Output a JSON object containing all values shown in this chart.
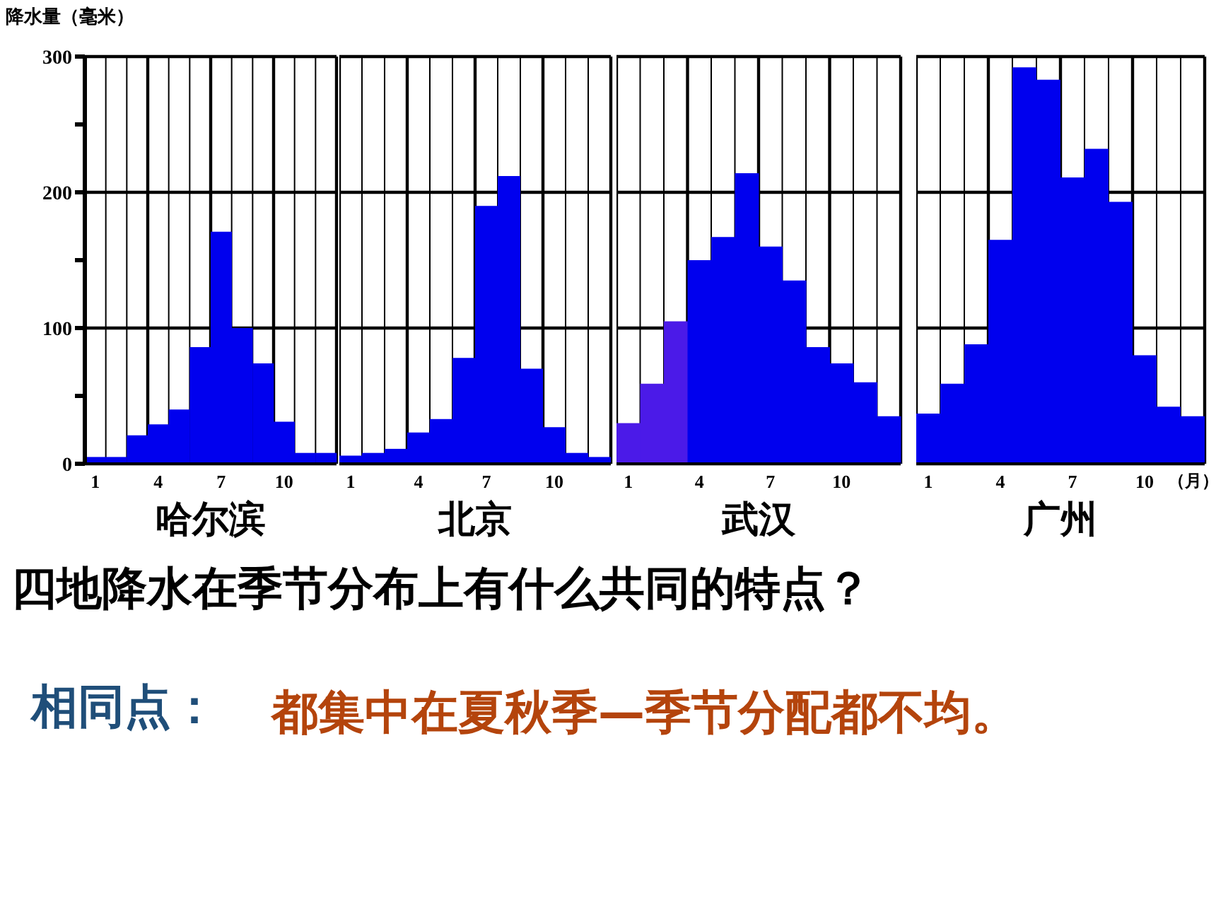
{
  "chart_data": [
    {
      "type": "bar",
      "title": "哈尔滨",
      "ylabel": "降水量（毫米）",
      "categories": [
        "1",
        null,
        null,
        "4",
        null,
        null,
        "7",
        null,
        null,
        "10",
        null,
        null
      ],
      "series": [
        {
          "color": "#0000ee",
          "values": [
            5,
            5,
            21,
            29,
            40,
            86,
            171,
            100,
            74,
            31,
            8,
            8
          ]
        }
      ],
      "ylim": [
        0,
        300
      ],
      "yticks": [
        0,
        {
          "value": 50,
          "label": null
        },
        100,
        {
          "value": 150,
          "label": null
        },
        200,
        {
          "value": 250,
          "label": null
        },
        300
      ],
      "grid": true
    },
    {
      "type": "bar",
      "title": "北京",
      "categories": [
        "1",
        null,
        null,
        "4",
        null,
        null,
        "7",
        null,
        null,
        "10",
        null,
        null
      ],
      "series": [
        {
          "color": "#0000ee",
          "values": [
            6,
            8,
            11,
            23,
            33,
            78,
            190,
            212,
            70,
            27,
            8,
            5
          ]
        }
      ],
      "ylim": [
        0,
        300
      ],
      "yticks": [
        0,
        100,
        200,
        300
      ],
      "grid": true,
      "tick_labels": "x"
    },
    {
      "type": "bar",
      "title": "武汉",
      "categories": [
        "1",
        null,
        null,
        "4",
        null,
        null,
        "7",
        null,
        null,
        "10",
        null,
        null
      ],
      "series": [
        {
          "color": "#0000ee",
          "colors": [
            "#4b1ae8",
            "#4b1ae8",
            "#4b1ae8",
            "#0000ee",
            "#0000ee",
            "#0000ee",
            "#0000ee",
            "#0000ee",
            "#0000ee",
            "#0000ee",
            "#0000ee",
            "#0000ee"
          ],
          "values": [
            30,
            59,
            105,
            150,
            167,
            214,
            160,
            135,
            86,
            74,
            60,
            35
          ]
        }
      ],
      "ylim": [
        0,
        300
      ],
      "yticks": [
        0,
        100,
        200,
        300
      ],
      "grid": true,
      "tick_labels": "x"
    },
    {
      "type": "bar",
      "title": "广州",
      "xlabel": "（月）",
      "categories": [
        "1",
        null,
        null,
        "4",
        null,
        null,
        "7",
        null,
        null,
        "10",
        null,
        null
      ],
      "series": [
        {
          "color": "#0000ee",
          "values": [
            37,
            59,
            88,
            165,
            292,
            283,
            211,
            232,
            193,
            80,
            42,
            35
          ]
        }
      ],
      "ylim": [
        0,
        300
      ],
      "yticks": [
        0,
        100,
        200,
        300
      ],
      "grid": true,
      "tick_labels": "x"
    },
    {
      "type": "other",
      "annotations": [
        "四地降水在季节分布上有什么共同的特点？",
        "相同点：",
        "都集中在夏秋季—季节分配都不均。"
      ]
    }
  ]
}
